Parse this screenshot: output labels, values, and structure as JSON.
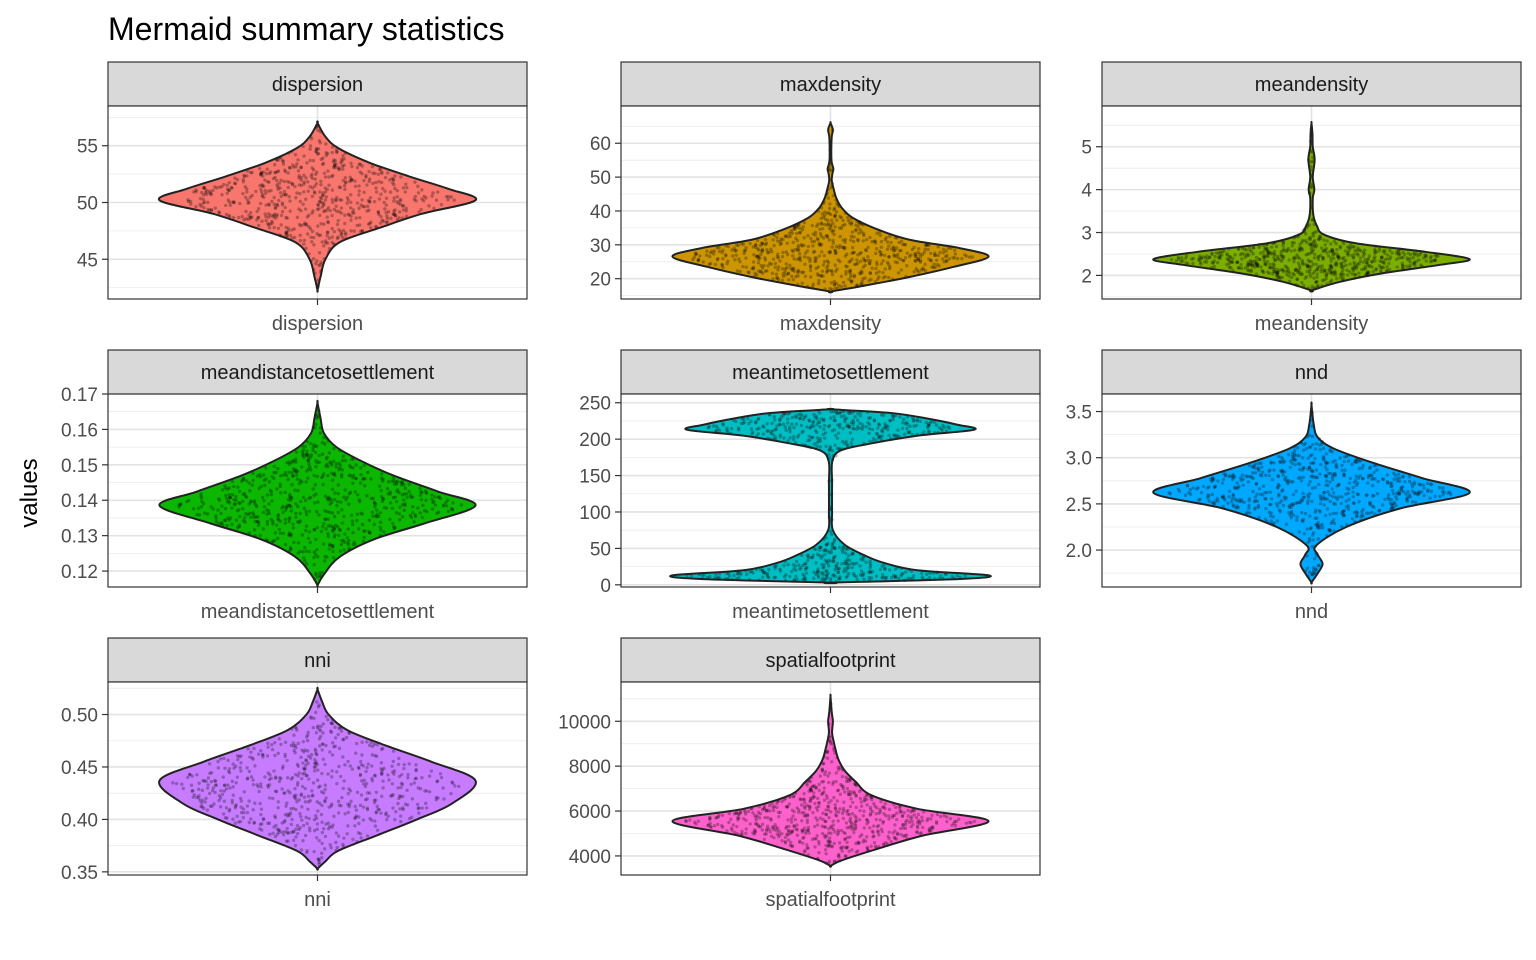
{
  "chart_data": {
    "type": "violin",
    "title": "Mermaid summary statistics",
    "ylabel": "values",
    "xlabel": "",
    "layout": "facet_wrap",
    "ncol": 3,
    "legend": "none",
    "grid": true,
    "panels": [
      {
        "strip": "dispersion",
        "xtick": "dispersion",
        "fill": "#F8766D",
        "ylim": [
          41.5,
          58.5
        ],
        "yticks": [
          45,
          50,
          55
        ],
        "ytick_labels": [
          "45",
          "50",
          "55"
        ],
        "profile": [
          [
            42.3,
            0.0
          ],
          [
            43.5,
            0.02
          ],
          [
            45.0,
            0.05
          ],
          [
            46.5,
            0.14
          ],
          [
            47.8,
            0.4
          ],
          [
            49.0,
            0.66
          ],
          [
            50.2,
            1.0
          ],
          [
            51.2,
            0.83
          ],
          [
            52.3,
            0.58
          ],
          [
            53.5,
            0.33
          ],
          [
            54.8,
            0.13
          ],
          [
            55.8,
            0.05
          ],
          [
            57.0,
            0.0
          ]
        ],
        "points": []
      },
      {
        "strip": "maxdensity",
        "xtick": "maxdensity",
        "fill": "#CD9600",
        "ylim": [
          14.0,
          71.0
        ],
        "yticks": [
          20,
          30,
          40,
          50,
          60
        ],
        "ytick_labels": [
          "20",
          "30",
          "40",
          "50",
          "60"
        ],
        "profile": [
          [
            16.2,
            0.0
          ],
          [
            18.0,
            0.22
          ],
          [
            20.5,
            0.5
          ],
          [
            23.5,
            0.78
          ],
          [
            26.5,
            1.0
          ],
          [
            29.0,
            0.82
          ],
          [
            31.5,
            0.5
          ],
          [
            34.5,
            0.3
          ],
          [
            38.0,
            0.14
          ],
          [
            41.0,
            0.07
          ],
          [
            44.0,
            0.035
          ],
          [
            46.5,
            0.02
          ],
          [
            49.0,
            0.008
          ],
          [
            51.0,
            0.012
          ],
          [
            52.5,
            0.018
          ],
          [
            54.5,
            0.007
          ],
          [
            58.0,
            0.005
          ],
          [
            62.0,
            0.008
          ],
          [
            64.0,
            0.015
          ],
          [
            66.0,
            0.0
          ]
        ],
        "points": []
      },
      {
        "strip": "meandensity",
        "xtick": "meandensity",
        "fill": "#7CAE00",
        "ylim": [
          1.45,
          5.95
        ],
        "yticks": [
          2,
          3,
          4,
          5
        ],
        "ytick_labels": [
          "2",
          "3",
          "4",
          "5"
        ],
        "profile": [
          [
            1.65,
            0.0
          ],
          [
            1.85,
            0.18
          ],
          [
            2.05,
            0.45
          ],
          [
            2.25,
            0.82
          ],
          [
            2.38,
            1.0
          ],
          [
            2.55,
            0.72
          ],
          [
            2.75,
            0.28
          ],
          [
            2.95,
            0.08
          ],
          [
            3.15,
            0.035
          ],
          [
            3.4,
            0.012
          ],
          [
            3.8,
            0.008
          ],
          [
            4.0,
            0.018
          ],
          [
            4.3,
            0.008
          ],
          [
            4.7,
            0.02
          ],
          [
            5.0,
            0.008
          ],
          [
            5.3,
            0.006
          ],
          [
            5.55,
            0.0
          ]
        ],
        "points": []
      },
      {
        "strip": "meandistancetosettlement",
        "xtick": "meandistancetosettlement",
        "fill": "#0CB702",
        "ylim": [
          0.1155,
          0.17
        ],
        "yticks": [
          0.12,
          0.13,
          0.14,
          0.15,
          0.16,
          0.17
        ],
        "ytick_labels": [
          "0.12",
          "0.13",
          "0.14",
          "0.15",
          "0.16",
          "0.17"
        ],
        "profile": [
          [
            0.116,
            0.0
          ],
          [
            0.119,
            0.04
          ],
          [
            0.124,
            0.14
          ],
          [
            0.129,
            0.36
          ],
          [
            0.1335,
            0.68
          ],
          [
            0.1385,
            1.0
          ],
          [
            0.1425,
            0.76
          ],
          [
            0.147,
            0.48
          ],
          [
            0.151,
            0.28
          ],
          [
            0.155,
            0.12
          ],
          [
            0.159,
            0.04
          ],
          [
            0.163,
            0.02
          ],
          [
            0.1675,
            0.0
          ]
        ],
        "points": []
      },
      {
        "strip": "meantimetosettlement",
        "xtick": "meantimetosettlement",
        "fill": "#00BFC4",
        "ylim": [
          -3,
          262
        ],
        "yticks": [
          0,
          50,
          100,
          150,
          200,
          250
        ],
        "ytick_labels": [
          "0",
          "50",
          "100",
          "150",
          "200",
          "250"
        ],
        "profile": [
          [
            3,
            0.0
          ],
          [
            8,
            0.82
          ],
          [
            13,
            1.0
          ],
          [
            20,
            0.55
          ],
          [
            30,
            0.34
          ],
          [
            40,
            0.22
          ],
          [
            55,
            0.09
          ],
          [
            75,
            0.015
          ],
          [
            100,
            0.01
          ],
          [
            140,
            0.01
          ],
          [
            170,
            0.012
          ],
          [
            185,
            0.07
          ],
          [
            195,
            0.28
          ],
          [
            205,
            0.56
          ],
          [
            213,
            0.91
          ],
          [
            220,
            0.8
          ],
          [
            228,
            0.62
          ],
          [
            236,
            0.38
          ],
          [
            241,
            0.0
          ]
        ],
        "points": []
      },
      {
        "strip": "nnd",
        "xtick": "nnd",
        "fill": "#00A9FF",
        "ylim": [
          1.6,
          3.69
        ],
        "yticks": [
          2.0,
          2.5,
          3.0,
          3.5
        ],
        "ytick_labels": [
          "2.0",
          "2.5",
          "3.0",
          "3.5"
        ],
        "profile": [
          [
            1.65,
            0.0
          ],
          [
            1.75,
            0.04
          ],
          [
            1.85,
            0.07
          ],
          [
            1.95,
            0.04
          ],
          [
            2.05,
            0.03
          ],
          [
            2.25,
            0.22
          ],
          [
            2.45,
            0.56
          ],
          [
            2.62,
            1.0
          ],
          [
            2.78,
            0.7
          ],
          [
            2.95,
            0.38
          ],
          [
            3.1,
            0.14
          ],
          [
            3.22,
            0.04
          ],
          [
            3.35,
            0.015
          ],
          [
            3.57,
            0.0
          ]
        ],
        "points": []
      },
      {
        "strip": "nni",
        "xtick": "nni",
        "fill": "#C77CFF",
        "ylim": [
          0.347,
          0.531
        ],
        "yticks": [
          0.35,
          0.4,
          0.45,
          0.5
        ],
        "ytick_labels": [
          "0.35",
          "0.40",
          "0.45",
          "0.50"
        ],
        "profile": [
          [
            0.353,
            0.0
          ],
          [
            0.36,
            0.05
          ],
          [
            0.37,
            0.13
          ],
          [
            0.385,
            0.38
          ],
          [
            0.4,
            0.63
          ],
          [
            0.415,
            0.85
          ],
          [
            0.437,
            1.0
          ],
          [
            0.455,
            0.72
          ],
          [
            0.47,
            0.44
          ],
          [
            0.485,
            0.19
          ],
          [
            0.5,
            0.07
          ],
          [
            0.512,
            0.03
          ],
          [
            0.524,
            0.0
          ]
        ],
        "points": []
      },
      {
        "strip": "spatialfootprint",
        "xtick": "spatialfootprint",
        "fill": "#FF61CC",
        "ylim": [
          3150,
          11750
        ],
        "yticks": [
          4000,
          6000,
          8000,
          10000
        ],
        "ytick_labels": [
          "4000",
          "6000",
          "8000",
          "10000"
        ],
        "profile": [
          [
            3550,
            0.0
          ],
          [
            3800,
            0.07
          ],
          [
            4300,
            0.29
          ],
          [
            4900,
            0.58
          ],
          [
            5550,
            1.0
          ],
          [
            6100,
            0.55
          ],
          [
            6700,
            0.26
          ],
          [
            7300,
            0.16
          ],
          [
            7800,
            0.09
          ],
          [
            8300,
            0.05
          ],
          [
            8800,
            0.03
          ],
          [
            9100,
            0.02
          ],
          [
            9500,
            0.01
          ],
          [
            10000,
            0.015
          ],
          [
            10400,
            0.008
          ],
          [
            11100,
            0.0
          ]
        ],
        "points": []
      }
    ]
  }
}
